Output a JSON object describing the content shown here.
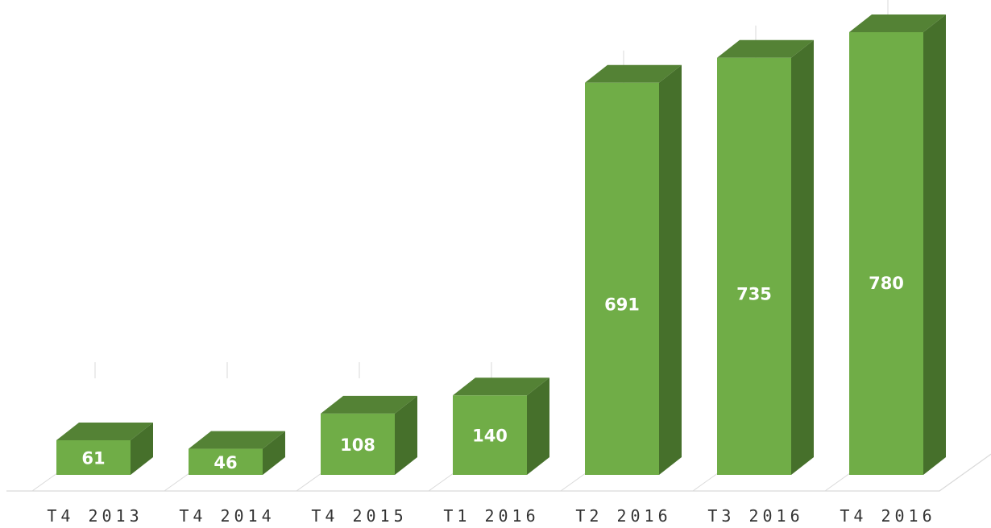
{
  "chart_data": {
    "type": "bar",
    "categories": [
      "T4 2013",
      "T4 2014",
      "T4 2015",
      "T1 2016",
      "T2 2016",
      "T3 2016",
      "T4 2016"
    ],
    "values": [
      61,
      46,
      108,
      140,
      691,
      735,
      780
    ],
    "title": "",
    "xlabel": "",
    "ylabel": "",
    "ylim": [
      0,
      780
    ],
    "grid": false,
    "legend": "none",
    "three_d": true,
    "data_labels": true,
    "colors": {
      "front": "#70ad47",
      "top": "#548235",
      "side": "#46702b",
      "label": "#ffffff",
      "floor": "#d9d9d9",
      "tick_text": "#333333"
    }
  }
}
